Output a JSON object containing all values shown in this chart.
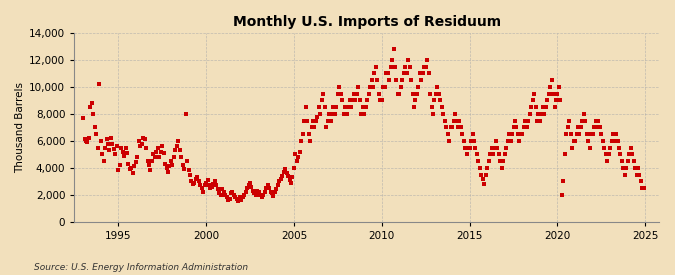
{
  "title": "Monthly U.S. Imports of Residuum",
  "ylabel": "Thousand Barrels",
  "source": "Source: U.S. Energy Information Administration",
  "background_color": "#f2e0bc",
  "plot_bg_color": "#f2e0bc",
  "marker_color": "#cc0000",
  "marker": "s",
  "marker_size": 12,
  "xlim": [
    1992.5,
    2025.8
  ],
  "ylim": [
    0,
    14000
  ],
  "yticks": [
    0,
    2000,
    4000,
    6000,
    8000,
    10000,
    12000,
    14000
  ],
  "xticks": [
    1995,
    2000,
    2005,
    2010,
    2015,
    2020,
    2025
  ],
  "grid_color": "#aaaaaa",
  "data_x": [
    1993.0,
    1993.083,
    1993.167,
    1993.25,
    1993.333,
    1993.417,
    1993.5,
    1993.583,
    1993.667,
    1993.75,
    1993.833,
    1993.917,
    1994.0,
    1994.083,
    1994.167,
    1994.25,
    1994.333,
    1994.417,
    1994.5,
    1994.583,
    1994.667,
    1994.75,
    1994.833,
    1994.917,
    1995.0,
    1995.083,
    1995.167,
    1995.25,
    1995.333,
    1995.417,
    1995.5,
    1995.583,
    1995.667,
    1995.75,
    1995.833,
    1995.917,
    1996.0,
    1996.083,
    1996.167,
    1996.25,
    1996.333,
    1996.417,
    1996.5,
    1996.583,
    1996.667,
    1996.75,
    1996.833,
    1996.917,
    1997.0,
    1997.083,
    1997.167,
    1997.25,
    1997.333,
    1997.417,
    1997.5,
    1997.583,
    1997.667,
    1997.75,
    1997.833,
    1997.917,
    1998.0,
    1998.083,
    1998.167,
    1998.25,
    1998.333,
    1998.417,
    1998.5,
    1998.583,
    1998.667,
    1998.75,
    1998.833,
    1998.917,
    1999.0,
    1999.083,
    1999.167,
    1999.25,
    1999.333,
    1999.417,
    1999.5,
    1999.583,
    1999.667,
    1999.75,
    1999.833,
    1999.917,
    2000.0,
    2000.083,
    2000.167,
    2000.25,
    2000.333,
    2000.417,
    2000.5,
    2000.583,
    2000.667,
    2000.75,
    2000.833,
    2000.917,
    2001.0,
    2001.083,
    2001.167,
    2001.25,
    2001.333,
    2001.417,
    2001.5,
    2001.583,
    2001.667,
    2001.75,
    2001.833,
    2001.917,
    2002.0,
    2002.083,
    2002.167,
    2002.25,
    2002.333,
    2002.417,
    2002.5,
    2002.583,
    2002.667,
    2002.75,
    2002.833,
    2002.917,
    2003.0,
    2003.083,
    2003.167,
    2003.25,
    2003.333,
    2003.417,
    2003.5,
    2003.583,
    2003.667,
    2003.75,
    2003.833,
    2003.917,
    2004.0,
    2004.083,
    2004.167,
    2004.25,
    2004.333,
    2004.417,
    2004.5,
    2004.583,
    2004.667,
    2004.75,
    2004.833,
    2004.917,
    2005.0,
    2005.083,
    2005.167,
    2005.25,
    2005.333,
    2005.417,
    2005.5,
    2005.583,
    2005.667,
    2005.75,
    2005.833,
    2005.917,
    2006.0,
    2006.083,
    2006.167,
    2006.25,
    2006.333,
    2006.417,
    2006.5,
    2006.583,
    2006.667,
    2006.75,
    2006.833,
    2006.917,
    2007.0,
    2007.083,
    2007.167,
    2007.25,
    2007.333,
    2007.417,
    2007.5,
    2007.583,
    2007.667,
    2007.75,
    2007.833,
    2007.917,
    2008.0,
    2008.083,
    2008.167,
    2008.25,
    2008.333,
    2008.417,
    2008.5,
    2008.583,
    2008.667,
    2008.75,
    2008.833,
    2008.917,
    2009.0,
    2009.083,
    2009.167,
    2009.25,
    2009.333,
    2009.417,
    2009.5,
    2009.583,
    2009.667,
    2009.75,
    2009.833,
    2009.917,
    2010.0,
    2010.083,
    2010.167,
    2010.25,
    2010.333,
    2010.417,
    2010.5,
    2010.583,
    2010.667,
    2010.75,
    2010.833,
    2010.917,
    2011.0,
    2011.083,
    2011.167,
    2011.25,
    2011.333,
    2011.417,
    2011.5,
    2011.583,
    2011.667,
    2011.75,
    2011.833,
    2011.917,
    2012.0,
    2012.083,
    2012.167,
    2012.25,
    2012.333,
    2012.417,
    2012.5,
    2012.583,
    2012.667,
    2012.75,
    2012.833,
    2012.917,
    2013.0,
    2013.083,
    2013.167,
    2013.25,
    2013.333,
    2013.417,
    2013.5,
    2013.583,
    2013.667,
    2013.75,
    2013.833,
    2013.917,
    2014.0,
    2014.083,
    2014.167,
    2014.25,
    2014.333,
    2014.417,
    2014.5,
    2014.583,
    2014.667,
    2014.75,
    2014.833,
    2014.917,
    2015.0,
    2015.083,
    2015.167,
    2015.25,
    2015.333,
    2015.417,
    2015.5,
    2015.583,
    2015.667,
    2015.75,
    2015.833,
    2015.917,
    2016.0,
    2016.083,
    2016.167,
    2016.25,
    2016.333,
    2016.417,
    2016.5,
    2016.583,
    2016.667,
    2016.75,
    2016.833,
    2016.917,
    2017.0,
    2017.083,
    2017.167,
    2017.25,
    2017.333,
    2017.417,
    2017.5,
    2017.583,
    2017.667,
    2017.75,
    2017.833,
    2017.917,
    2018.0,
    2018.083,
    2018.167,
    2018.25,
    2018.333,
    2018.417,
    2018.5,
    2018.583,
    2018.667,
    2018.75,
    2018.833,
    2018.917,
    2019.0,
    2019.083,
    2019.167,
    2019.25,
    2019.333,
    2019.417,
    2019.5,
    2019.583,
    2019.667,
    2019.75,
    2019.833,
    2019.917,
    2020.0,
    2020.083,
    2020.167,
    2020.25,
    2020.333,
    2020.417,
    2020.5,
    2020.583,
    2020.667,
    2020.75,
    2020.833,
    2020.917,
    2021.0,
    2021.083,
    2021.167,
    2021.25,
    2021.333,
    2021.417,
    2021.5,
    2021.583,
    2021.667,
    2021.75,
    2021.833,
    2021.917,
    2022.0,
    2022.083,
    2022.167,
    2022.25,
    2022.333,
    2022.417,
    2022.5,
    2022.583,
    2022.667,
    2022.75,
    2022.833,
    2022.917,
    2023.0,
    2023.083,
    2023.167,
    2023.25,
    2023.333,
    2023.417,
    2023.5,
    2023.583,
    2023.667,
    2023.75,
    2023.833,
    2023.917,
    2024.0,
    2024.083,
    2024.167,
    2024.25,
    2024.333,
    2024.417,
    2024.5,
    2024.583,
    2024.667,
    2024.75,
    2024.833,
    2024.917
  ],
  "data_y": [
    7700,
    6100,
    6000,
    5900,
    6200,
    8500,
    8800,
    8000,
    7000,
    6500,
    5500,
    10200,
    6000,
    5000,
    4500,
    5500,
    6100,
    5800,
    5300,
    6200,
    5800,
    5400,
    5000,
    5600,
    3800,
    4200,
    5500,
    5200,
    4900,
    5500,
    5100,
    4300,
    3900,
    4000,
    3600,
    4100,
    4400,
    4800,
    6000,
    5600,
    5800,
    6200,
    6100,
    5500,
    4500,
    4200,
    3800,
    4500,
    5000,
    4800,
    5200,
    5500,
    4800,
    5200,
    5600,
    5100,
    4300,
    4000,
    3700,
    4100,
    4500,
    4200,
    4800,
    5300,
    5600,
    6000,
    5300,
    4800,
    4200,
    3900,
    8000,
    4500,
    3800,
    3500,
    3000,
    2800,
    2900,
    3200,
    3300,
    3000,
    2700,
    2500,
    2200,
    2700,
    2900,
    3100,
    2700,
    2500,
    2600,
    2800,
    3000,
    2700,
    2400,
    2100,
    2000,
    2400,
    2200,
    2000,
    1800,
    1600,
    1700,
    2100,
    2200,
    2000,
    1800,
    1700,
    1500,
    1800,
    1600,
    1800,
    2000,
    2200,
    2500,
    2700,
    2900,
    2600,
    2300,
    2100,
    2000,
    2300,
    2200,
    2000,
    1800,
    2000,
    2200,
    2500,
    2700,
    2500,
    2200,
    2100,
    1900,
    2200,
    2400,
    2700,
    3000,
    3200,
    3400,
    3700,
    3900,
    3600,
    3400,
    3100,
    2900,
    3300,
    4000,
    5000,
    4500,
    4800,
    5200,
    6000,
    6500,
    7500,
    8500,
    7500,
    6500,
    6000,
    7000,
    7500,
    7000,
    7500,
    7800,
    8500,
    8000,
    9000,
    9500,
    8500,
    7000,
    7500,
    8000,
    7500,
    8000,
    8500,
    8000,
    8500,
    9500,
    10000,
    9500,
    9000,
    8000,
    8500,
    8000,
    8500,
    9000,
    8500,
    9000,
    9500,
    9000,
    9500,
    10000,
    9000,
    8000,
    8500,
    8000,
    8500,
    9000,
    9500,
    10000,
    10500,
    10000,
    11000,
    11500,
    10500,
    9500,
    9000,
    9000,
    10000,
    10000,
    11000,
    11000,
    10500,
    11500,
    12000,
    12800,
    11500,
    10500,
    9500,
    9500,
    10000,
    10500,
    11000,
    11500,
    11000,
    12000,
    11500,
    10500,
    9500,
    8500,
    9000,
    9500,
    10000,
    11000,
    10500,
    11000,
    11500,
    11500,
    12000,
    11000,
    9500,
    8500,
    8000,
    9000,
    9500,
    10000,
    9500,
    9000,
    8500,
    8000,
    7500,
    7000,
    6500,
    6000,
    7000,
    7000,
    7500,
    8000,
    7500,
    7000,
    7500,
    7000,
    6500,
    6000,
    5500,
    5000,
    5500,
    5500,
    6000,
    6500,
    6000,
    5500,
    5000,
    4500,
    4000,
    3500,
    3200,
    2800,
    3500,
    4000,
    4500,
    5000,
    5500,
    5000,
    5500,
    6000,
    5500,
    5000,
    4500,
    4000,
    4500,
    5000,
    5500,
    6000,
    6500,
    6000,
    6500,
    7000,
    7500,
    7000,
    6500,
    6000,
    6500,
    6500,
    7000,
    7500,
    7000,
    7500,
    8000,
    8500,
    9000,
    9500,
    8500,
    7500,
    8000,
    7500,
    8000,
    8500,
    8000,
    8500,
    9000,
    9500,
    10000,
    10500,
    9500,
    8500,
    9000,
    9500,
    10000,
    9000,
    2000,
    3000,
    5000,
    6500,
    7000,
    7500,
    6500,
    5500,
    6000,
    6000,
    6500,
    7000,
    6500,
    7000,
    7500,
    8000,
    7500,
    6500,
    6000,
    5500,
    6500,
    6500,
    7000,
    7500,
    7000,
    7500,
    7000,
    6500,
    6000,
    5500,
    5000,
    4500,
    5000,
    5500,
    6000,
    6500,
    6000,
    6500,
    6000,
    5500,
    5000,
    4500,
    4000,
    3500,
    4000,
    4500,
    5000,
    5500,
    5000,
    4500,
    4000,
    3500,
    4000,
    3500,
    3000,
    2500,
    2500
  ]
}
